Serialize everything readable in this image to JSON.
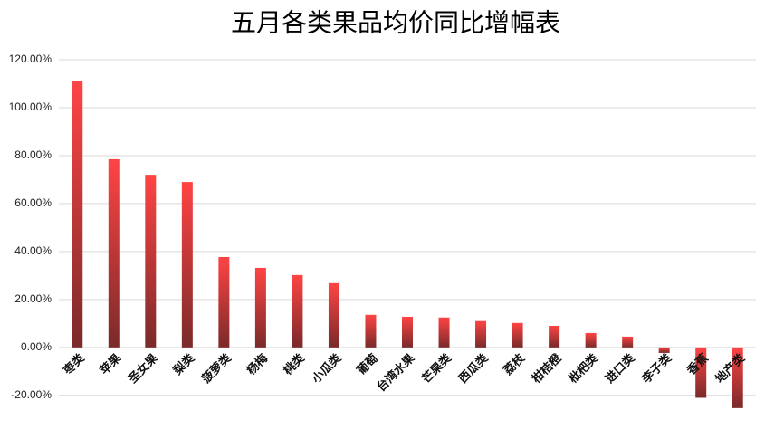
{
  "chart_data": {
    "type": "bar",
    "title": "五月各类果品均价同比增幅表",
    "categories": [
      "枣类",
      "苹果",
      "圣女果",
      "梨类",
      "菠萝类",
      "杨梅",
      "桃类",
      "小瓜类",
      "葡萄",
      "台湾水果",
      "芒果类",
      "西瓜类",
      "荔枝",
      "柑桔橙",
      "枇杷类",
      "进口类",
      "李子类",
      "香蕉",
      "地产类"
    ],
    "values": [
      111,
      78.5,
      72,
      69,
      37.7,
      33.2,
      30.2,
      26.8,
      13.6,
      12.8,
      12.5,
      11,
      10.2,
      9,
      6,
      4.5,
      -2.3,
      -21,
      -25.3
    ],
    "color": "#ff4444",
    "ylim": [
      -28,
      120
    ],
    "yticks": [
      {
        "value": -20,
        "label": "-20.00%"
      },
      {
        "value": 0,
        "label": "0.00%"
      },
      {
        "value": 20,
        "label": "20.00%"
      },
      {
        "value": 40,
        "label": "40.00%"
      },
      {
        "value": 60,
        "label": "60.00%"
      },
      {
        "value": 80,
        "label": "80.00%"
      },
      {
        "value": 100,
        "label": "100.00%"
      },
      {
        "value": 120,
        "label": "120.00%"
      }
    ],
    "grid": true
  }
}
